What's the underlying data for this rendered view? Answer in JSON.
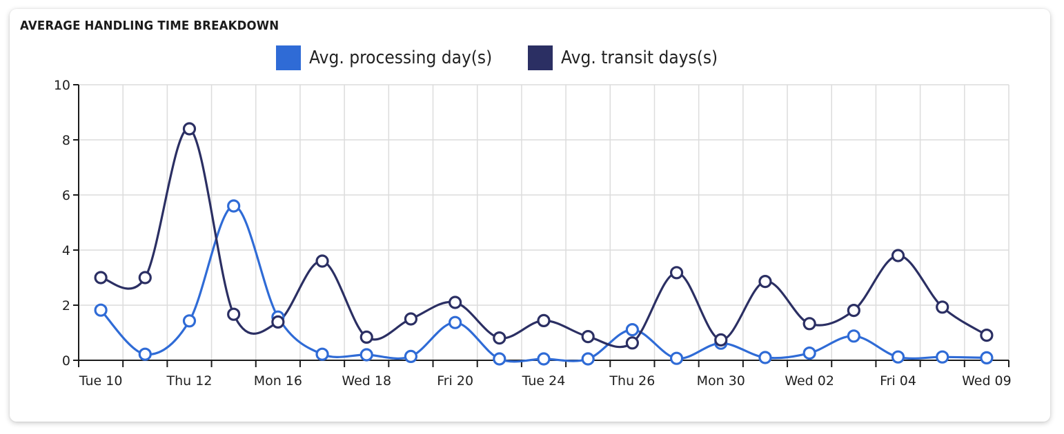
{
  "card": {
    "title": "AVERAGE HANDLING TIME BREAKDOWN"
  },
  "legend": [
    {
      "label": "Avg. processing day(s)",
      "color": "#2f6bd6"
    },
    {
      "label": "Avg. transit days(s)",
      "color": "#2b2f63"
    }
  ],
  "chart_data": {
    "type": "line",
    "title": "AVERAGE HANDLING TIME BREAKDOWN",
    "xlabel": "",
    "ylabel": "",
    "ylim": [
      0,
      10
    ],
    "yticks": [
      0,
      2,
      4,
      6,
      8,
      10
    ],
    "grid": true,
    "legend_position": "top",
    "curve": "smooth",
    "categories": [
      "Tue 10",
      "",
      "Thu 12",
      "",
      "Mon 16",
      "",
      "Wed 18",
      "",
      "Fri 20",
      "",
      "Tue 24",
      "",
      "Thu 26",
      "",
      "Mon 30",
      "",
      "Wed 02",
      "",
      "Fri 04",
      "",
      "Wed 09"
    ],
    "series": [
      {
        "name": "Avg. processing day(s)",
        "color": "#2f6bd6",
        "values": [
          1.82,
          0.22,
          1.43,
          5.6,
          1.57,
          0.22,
          0.2,
          0.14,
          1.37,
          0.05,
          0.05,
          0.05,
          1.11,
          0.07,
          0.62,
          0.1,
          0.26,
          0.88,
          0.12,
          0.12,
          0.09
        ]
      },
      {
        "name": "Avg. transit days(s)",
        "color": "#2b2f63",
        "values": [
          3.0,
          3.0,
          8.4,
          1.67,
          1.39,
          3.6,
          0.84,
          1.5,
          2.1,
          0.81,
          1.44,
          0.86,
          0.63,
          3.18,
          0.74,
          2.86,
          1.33,
          1.81,
          3.8,
          1.93,
          0.91
        ]
      }
    ]
  }
}
